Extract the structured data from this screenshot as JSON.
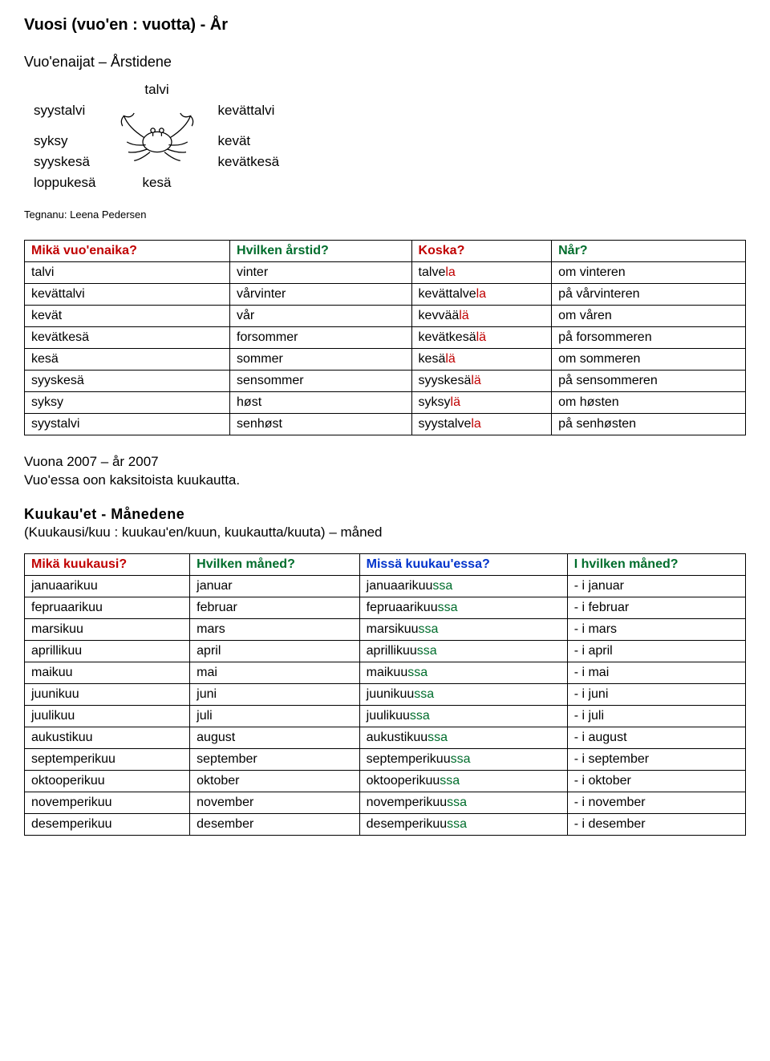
{
  "title": "Vuosi (vuo'en : vuotta) - År",
  "subtitle": "Vuo'enaijat – Årstidene",
  "diagram": {
    "top": "talvi",
    "left1": "syystalvi",
    "right1": "kevättalvi",
    "left2a": "syksy",
    "right2a": "kevät",
    "left2b": "syyskesä",
    "right2b": "kevätkesä",
    "left2c": "loppukesä",
    "bottom": "kesä"
  },
  "caption": "Tegnanu: Leena Pedersen",
  "table1": {
    "headers": [
      "Mikä vuo'enaika?",
      "Hvilken årstid?",
      "Koska?",
      "Når?"
    ],
    "header_colors": [
      "hdr-red",
      "hdr-green",
      "hdr-red",
      "hdr-green"
    ],
    "rows": [
      {
        "c1": "talvi",
        "c2": "vinter",
        "c3_base": "talve",
        "c3_suf": "la",
        "c4": "om vinteren"
      },
      {
        "c1": "kevättalvi",
        "c2": "vårvinter",
        "c3_base": "kevättalve",
        "c3_suf": "la",
        "c4": "på vårvinteren"
      },
      {
        "c1": "kevät",
        "c2": "vår",
        "c3_base": "kevvää",
        "c3_suf": "lä",
        "c4": "om våren"
      },
      {
        "c1": "kevätkesä",
        "c2": "forsommer",
        "c3_base": "kevätkesä",
        "c3_suf": "lä",
        "c4": "på forsommeren"
      },
      {
        "c1": "kesä",
        "c2": "sommer",
        "c3_base": "kesä",
        "c3_suf": "lä",
        "c4": "om sommeren"
      },
      {
        "c1": "syyskesä",
        "c2": "sensommer",
        "c3_base": "syyskesä",
        "c3_suf": "lä",
        "c4": "på sensommeren"
      },
      {
        "c1": "syksy",
        "c2": "høst",
        "c3_base": "syksy",
        "c3_suf": "lä",
        "c4": "om høsten"
      },
      {
        "c1": "syystalvi",
        "c2": "senhøst",
        "c3_base": "syystalve",
        "c3_suf": "la",
        "c4": "på senhøsten"
      }
    ]
  },
  "paragraph": {
    "line1": "Vuona 2007 – år 2007",
    "line2": "Vuo'essa oon kaksitoista kuukautta."
  },
  "section2": {
    "heading": "Kuukau'et - Månedene",
    "sub": "(Kuukausi/kuu : kuukau'en/kuun, kuukautta/kuuta) – måned"
  },
  "table2": {
    "headers": [
      "Mikä kuukausi?",
      "Hvilken måned?",
      "Missä kuukau'essa?",
      "I hvilken måned?"
    ],
    "header_colors": [
      "hdr-red",
      "hdr-green",
      "hdr-blue",
      "hdr-green"
    ],
    "rows": [
      {
        "c1": "januaarikuu",
        "c2": "januar",
        "c3_base": "januaarikuu",
        "c3_suf": "ssa",
        "c4": "- i januar"
      },
      {
        "c1": "fepruaarikuu",
        "c2": "februar",
        "c3_base": "fepruaarikuu",
        "c3_suf": "ssa",
        "c4": "- i februar"
      },
      {
        "c1": "marsikuu",
        "c2": "mars",
        "c3_base": "marsikuu",
        "c3_suf": "ssa",
        "c4": "- i mars"
      },
      {
        "c1": "aprillikuu",
        "c2": "april",
        "c3_base": "aprillikuu",
        "c3_suf": "ssa",
        "c4": "- i april"
      },
      {
        "c1": "maikuu",
        "c2": "mai",
        "c3_base": "maikuu",
        "c3_suf": "ssa",
        "c4": "- i mai"
      },
      {
        "c1": "juunikuu",
        "c2": "juni",
        "c3_base": "juunikuu",
        "c3_suf": "ssa",
        "c4": "- i juni"
      },
      {
        "c1": "juulikuu",
        "c2": "juli",
        "c3_base": "juulikuu",
        "c3_suf": "ssa",
        "c4": "- i juli"
      },
      {
        "c1": "aukustikuu",
        "c2": "august",
        "c3_base": "aukustikuu",
        "c3_suf": "ssa",
        "c4": "- i august"
      },
      {
        "c1": "septemperikuu",
        "c2": "september",
        "c3_base": "septemperikuu",
        "c3_suf": "ssa",
        "c4": "- i september"
      },
      {
        "c1": "oktooperikuu",
        "c2": "oktober",
        "c3_base": "oktooperikuu",
        "c3_suf": "ssa",
        "c4": "- i oktober"
      },
      {
        "c1": "novemperikuu",
        "c2": "november",
        "c3_base": "novemperikuu",
        "c3_suf": "ssa",
        "c4": "- i november"
      },
      {
        "c1": "desemperikuu",
        "c2": "desember",
        "c3_base": "desemperikuu",
        "c3_suf": "ssa",
        "c4": "- i desember"
      }
    ]
  }
}
